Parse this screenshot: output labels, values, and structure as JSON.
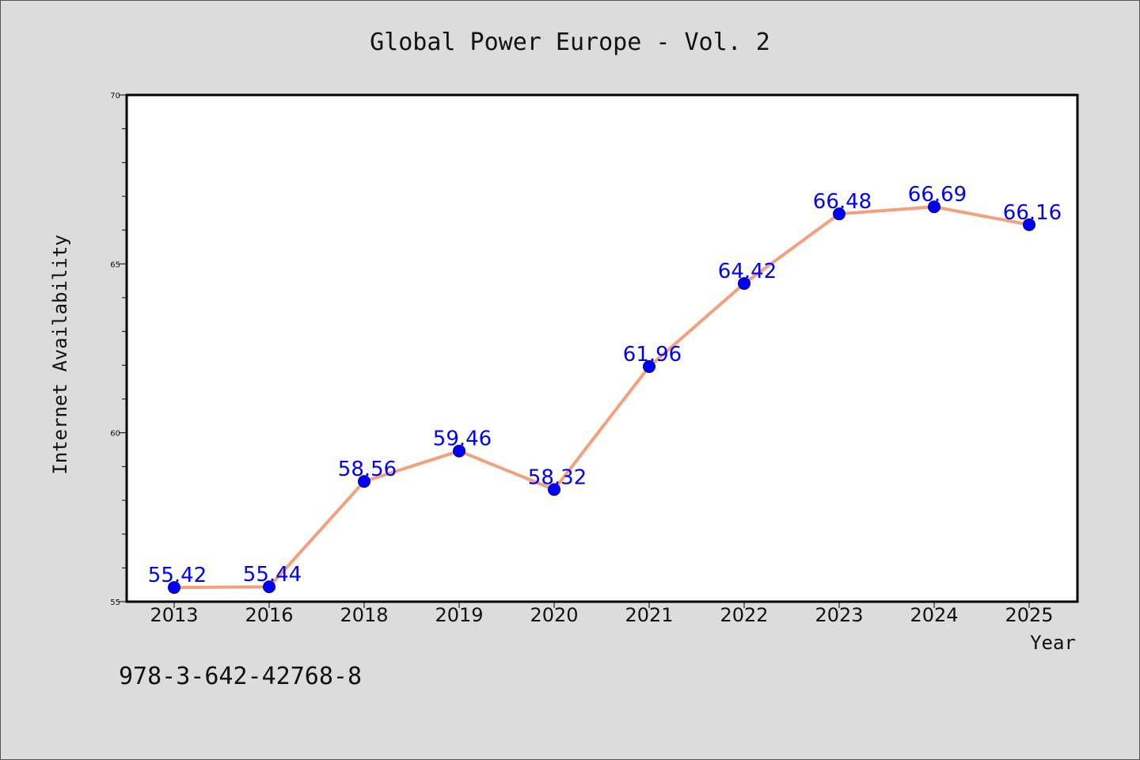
{
  "chart_data": {
    "type": "line",
    "title": "Global Power Europe - Vol. 2",
    "xlabel": "Year",
    "ylabel": "Internet Availability",
    "categories": [
      "2013",
      "2016",
      "2018",
      "2019",
      "2020",
      "2021",
      "2022",
      "2023",
      "2024",
      "2025"
    ],
    "series": [
      {
        "values": [
          55.42,
          55.44,
          58.56,
          59.46,
          58.32,
          61.96,
          64.42,
          66.48,
          66.69,
          66.16
        ],
        "line_color": "#f4a07c",
        "marker_color": "#0000ff"
      }
    ],
    "data_labels": [
      "55.42",
      "55.44",
      "58.56",
      "59.46",
      "58.32",
      "61.96",
      "64.42",
      "66.48",
      "66.69",
      "66.16"
    ],
    "ylim": [
      55,
      70
    ],
    "yticks": [
      "55",
      "60",
      "65",
      "70"
    ],
    "grid": false,
    "background": "#ffffff",
    "figure_background": "#dcdcdc",
    "footer_text": "978-3-642-42768-8"
  }
}
